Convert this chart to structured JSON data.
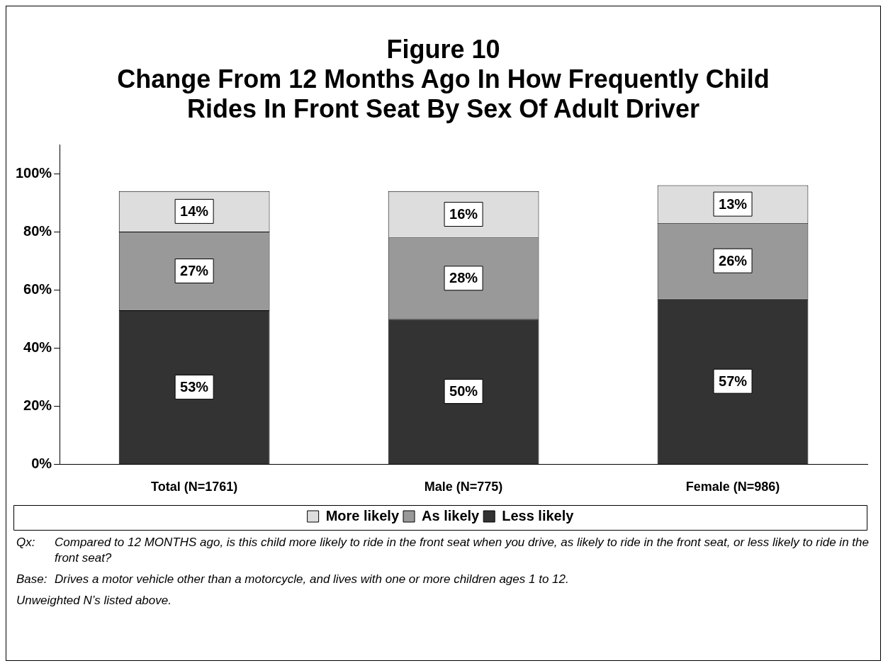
{
  "chart_data": {
    "type": "bar",
    "stacked": true,
    "title": "Figure 10",
    "subtitle": "Change From 12 Months Ago In How Frequently Child Rides In Front Seat By Sex Of Adult Driver",
    "categories": [
      "Total (N=1761)",
      "Male (N=775)",
      "Female (N=986)"
    ],
    "series": [
      {
        "name": "Less likely",
        "color": "#333333",
        "values": [
          53,
          50,
          57
        ]
      },
      {
        "name": "As likely",
        "color": "#999999",
        "values": [
          27,
          28,
          26
        ]
      },
      {
        "name": "More likely",
        "color": "#dddddd",
        "values": [
          14,
          16,
          13
        ]
      }
    ],
    "ylim": [
      0,
      110
    ],
    "yticks": [
      {
        "value": 0,
        "label": "0%"
      },
      {
        "value": 20,
        "label": "20%"
      },
      {
        "value": 40,
        "label": "40%"
      },
      {
        "value": 60,
        "label": "60%"
      },
      {
        "value": 80,
        "label": "80%"
      },
      {
        "value": 100,
        "label": "100%"
      }
    ],
    "value_labels": [
      [
        "53%",
        "50%",
        "57%"
      ],
      [
        "27%",
        "28%",
        "26%"
      ],
      [
        "14%",
        "16%",
        "13%"
      ]
    ],
    "grid": false,
    "legend": "bottom",
    "annotations": [
      "Qx:\tCompared to 12 MONTHS ago, is this child more likely to ride in the front seat when you drive, as likely to ride in the front seat, or less likely to ride in the front seat?",
      "Base:\tDrives a motor vehicle other than a motorcycle, and lives with one or more children ages 1 to 12.",
      "Unweighted N’s listed above."
    ]
  }
}
